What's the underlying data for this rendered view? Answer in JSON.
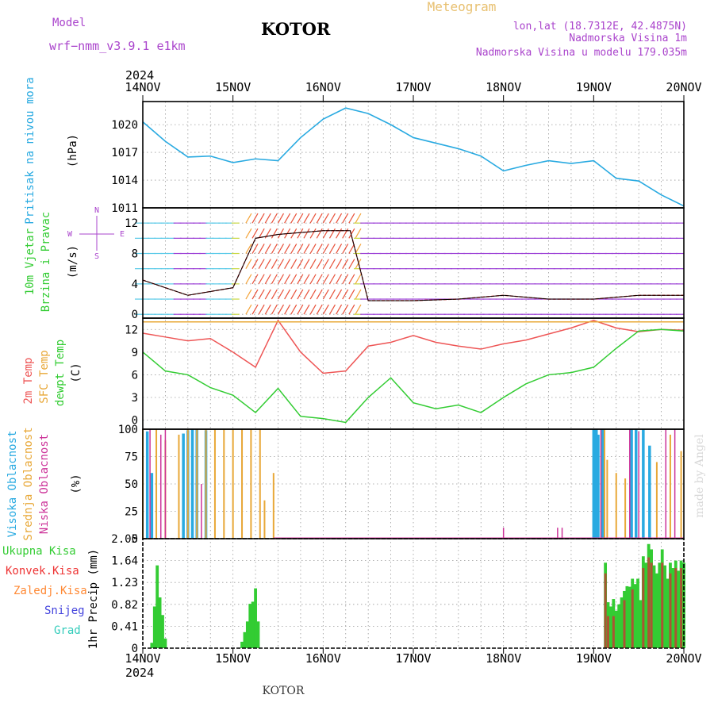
{
  "header": {
    "model_label": "Model",
    "model_name": "wrf−nmm_v3.9.1  e1km",
    "title": "KOTOR",
    "meteogram_label": "Meteogram",
    "lonlat": "lon,lat (18.7312E, 42.4875N)",
    "elevation": "Nadmorska Visina 1m",
    "model_elevation": "Nadmorska Visina u modelu 179.035m",
    "credit": "made by Angel",
    "footer": "KOTOR"
  },
  "colors": {
    "pressure": "#29aae1",
    "temp2m": "#ee5555",
    "sfc_temp": "#e8a838",
    "dewpt": "#33cc33",
    "visoka": "#29aae1",
    "srednja": "#e8a838",
    "niska": "#cc3399",
    "ukupna": "#33cc33",
    "konvek": "#ee3333",
    "zaledj": "#ff8833",
    "snijeg": "#4444dd",
    "grad": "#33ccbb",
    "purple": "#aa44cc",
    "gold": "#e8c070"
  },
  "time_axis": {
    "year": "2024",
    "days": [
      "14NOV",
      "15NOV",
      "16NOV",
      "17NOV",
      "18NOV",
      "19NOV",
      "20NOV"
    ]
  },
  "chart_data": [
    {
      "type": "line",
      "name": "pressure",
      "ylabel": "Pritisak na nivou mora",
      "unit": "(hPa)",
      "ylim": [
        1011,
        1022.5
      ],
      "yticks": [
        1011,
        1014,
        1017,
        1020
      ],
      "x_days": [
        0.0,
        0.25,
        0.5,
        0.75,
        1.0,
        1.25,
        1.5,
        1.75,
        2.0,
        2.25,
        2.5,
        2.75,
        3.0,
        3.25,
        3.5,
        3.75,
        4.0,
        4.25,
        4.5,
        4.75,
        5.0,
        5.25,
        5.5,
        5.75,
        6.0
      ],
      "series": [
        {
          "values": [
            1020.3,
            1018.2,
            1016.5,
            1016.6,
            1015.9,
            1016.3,
            1016.1,
            1018.6,
            1020.6,
            1021.8,
            1021.2,
            1020.0,
            1018.6,
            1018.0,
            1017.4,
            1016.6,
            1015.0,
            1015.6,
            1016.1,
            1015.8,
            1016.1,
            1014.2,
            1013.9,
            1012.4,
            1011.2
          ]
        }
      ]
    },
    {
      "type": "wind_barbs",
      "name": "wind",
      "ylabel_top": "10m Vjetar",
      "ylabel_bottom": "Brzina i Pravac",
      "unit": "(m/s)",
      "compass": [
        "N",
        "W",
        "E",
        "S"
      ],
      "ylim": [
        -0.5,
        14
      ],
      "yticks": [
        0,
        4,
        8,
        12
      ],
      "x_days": [
        0.0,
        0.5,
        1.0,
        1.25,
        1.5,
        2.0,
        2.3,
        2.5,
        3.0,
        3.5,
        4.0,
        4.5,
        5.0,
        5.5,
        6.0
      ],
      "series": [
        {
          "values": [
            4.5,
            2.5,
            3.5,
            10.0,
            10.5,
            11.0,
            11.0,
            1.8,
            1.8,
            2.0,
            2.5,
            2.0,
            2.0,
            2.5,
            2.5
          ]
        }
      ]
    },
    {
      "type": "line",
      "name": "temperature",
      "ylabel_a": "2m Temp",
      "ylabel_b": "SFC Temp",
      "ylabel_c": "dewpt Temp",
      "unit": "(C)",
      "ylim": [
        -1.2,
        13.5
      ],
      "yticks": [
        0,
        3,
        6,
        9,
        12
      ],
      "x_days": [
        0.0,
        0.25,
        0.5,
        0.75,
        1.0,
        1.25,
        1.5,
        1.75,
        2.0,
        2.25,
        2.5,
        2.75,
        3.0,
        3.25,
        3.5,
        3.75,
        4.0,
        4.25,
        4.5,
        4.75,
        5.0,
        5.25,
        5.5,
        5.75,
        6.0
      ],
      "series": [
        {
          "values": [
            11.5,
            11.0,
            10.5,
            10.8,
            9.0,
            7.0,
            13.2,
            9.0,
            6.2,
            6.5,
            9.8,
            10.3,
            11.2,
            10.3,
            9.8,
            9.4,
            10.1,
            10.6,
            11.4,
            12.2,
            13.2,
            12.2,
            11.7,
            12.0,
            11.9
          ]
        },
        {
          "values": [
            13.0,
            13.0,
            13.0,
            13.0,
            13.0,
            13.0,
            13.0,
            13.0,
            13.0,
            13.0,
            13.0,
            13.0,
            13.0,
            13.0,
            13.0,
            13.0,
            13.0,
            13.0,
            13.0,
            13.0,
            13.0,
            13.0,
            13.0,
            13.0,
            13.0
          ]
        },
        {
          "values": [
            9.0,
            6.5,
            6.0,
            4.3,
            3.3,
            1.0,
            4.2,
            0.5,
            0.2,
            -0.3,
            3.0,
            5.6,
            2.3,
            1.5,
            2.0,
            1.0,
            3.0,
            4.8,
            6.0,
            6.3,
            7.0,
            9.5,
            11.8,
            12.0,
            11.8
          ]
        }
      ]
    },
    {
      "type": "bar",
      "name": "cloud_cover",
      "ylabel_a": "Visoka Oblacnost",
      "ylabel_b": "Srednja Oblacnost",
      "ylabel_c": "Niska Oblacnost",
      "unit": "(%)",
      "ylim": [
        0,
        100
      ],
      "yticks": [
        0,
        25,
        50,
        75,
        100
      ],
      "series": [
        {
          "points": [
            [
              0.05,
              98
            ],
            [
              0.1,
              60
            ],
            [
              0.45,
              96
            ],
            [
              0.5,
              99
            ],
            [
              0.55,
              100
            ],
            [
              0.6,
              100
            ],
            [
              0.7,
              99
            ],
            [
              5.0,
              100
            ],
            [
              5.03,
              100
            ],
            [
              5.05,
              95
            ],
            [
              5.1,
              100
            ],
            [
              5.42,
              100
            ],
            [
              5.47,
              100
            ],
            [
              5.55,
              100
            ],
            [
              5.62,
              85
            ]
          ]
        },
        {
          "points": [
            [
              0.0,
              100
            ],
            [
              0.15,
              100
            ],
            [
              0.25,
              90
            ],
            [
              0.4,
              95
            ],
            [
              0.5,
              100
            ],
            [
              0.6,
              100
            ],
            [
              0.7,
              100
            ],
            [
              0.8,
              100
            ],
            [
              0.9,
              100
            ],
            [
              1.0,
              100
            ],
            [
              1.1,
              100
            ],
            [
              1.2,
              100
            ],
            [
              1.3,
              100
            ],
            [
              1.35,
              35
            ],
            [
              1.45,
              60
            ],
            [
              5.12,
              100
            ],
            [
              5.15,
              72
            ],
            [
              5.25,
              60
            ],
            [
              5.35,
              55
            ],
            [
              5.7,
              70
            ],
            [
              5.85,
              95
            ],
            [
              5.97,
              80
            ]
          ]
        },
        {
          "points": [
            [
              0.08,
              100
            ],
            [
              0.2,
              95
            ],
            [
              0.25,
              100
            ],
            [
              0.65,
              50
            ],
            [
              4.0,
              10
            ],
            [
              4.6,
              10
            ],
            [
              4.65,
              10
            ],
            [
              5.08,
              100
            ],
            [
              5.4,
              100
            ],
            [
              5.5,
              98
            ],
            [
              5.8,
              100
            ],
            [
              5.9,
              100
            ]
          ]
        }
      ]
    },
    {
      "type": "bar",
      "name": "precipitation",
      "legend": [
        "Ukupna Kisa",
        "Konvek.Kisa",
        "Zaledj.Kisa",
        "Snijeg",
        "Grad"
      ],
      "ylabel": "1hr Precip (mm)",
      "ylim": [
        0,
        2.05
      ],
      "yticks": [
        "0",
        "0.41",
        "0.82",
        "1.23",
        "1.64",
        "2.05"
      ],
      "series": [
        {
          "points": [
            [
              0.1,
              0.1
            ],
            [
              0.13,
              0.78
            ],
            [
              0.16,
              1.55
            ],
            [
              0.19,
              0.95
            ],
            [
              0.22,
              0.62
            ],
            [
              0.25,
              0.18
            ],
            [
              1.1,
              0.12
            ],
            [
              1.13,
              0.3
            ],
            [
              1.16,
              0.5
            ],
            [
              1.19,
              0.83
            ],
            [
              1.22,
              0.87
            ],
            [
              1.25,
              1.12
            ],
            [
              1.28,
              0.5
            ],
            [
              5.13,
              1.6
            ],
            [
              5.16,
              0.86
            ],
            [
              5.19,
              0.78
            ],
            [
              5.22,
              0.92
            ],
            [
              5.25,
              0.7
            ],
            [
              5.28,
              0.82
            ],
            [
              5.31,
              0.95
            ],
            [
              5.34,
              1.07
            ],
            [
              5.37,
              1.16
            ],
            [
              5.4,
              1.15
            ],
            [
              5.43,
              1.3
            ],
            [
              5.46,
              1.2
            ],
            [
              5.49,
              1.3
            ],
            [
              5.52,
              0.9
            ],
            [
              5.55,
              1.72
            ],
            [
              5.58,
              1.6
            ],
            [
              5.61,
              1.95
            ],
            [
              5.64,
              1.85
            ],
            [
              5.67,
              1.55
            ],
            [
              5.7,
              1.4
            ],
            [
              5.73,
              1.6
            ],
            [
              5.76,
              1.85
            ],
            [
              5.79,
              1.55
            ],
            [
              5.82,
              1.3
            ],
            [
              5.85,
              1.6
            ],
            [
              5.88,
              1.5
            ],
            [
              5.91,
              1.64
            ],
            [
              5.94,
              1.45
            ],
            [
              5.97,
              1.64
            ],
            [
              6.0,
              1.6
            ]
          ]
        },
        {
          "points": [
            [
              5.13,
              1.4
            ],
            [
              5.16,
              0.6
            ],
            [
              5.22,
              0.6
            ],
            [
              5.34,
              0.9
            ],
            [
              5.43,
              1.1
            ],
            [
              5.55,
              1.5
            ],
            [
              5.61,
              1.7
            ],
            [
              5.64,
              1.6
            ],
            [
              5.76,
              1.6
            ],
            [
              5.85,
              1.4
            ],
            [
              5.91,
              1.5
            ],
            [
              5.97,
              1.5
            ]
          ]
        }
      ]
    }
  ]
}
